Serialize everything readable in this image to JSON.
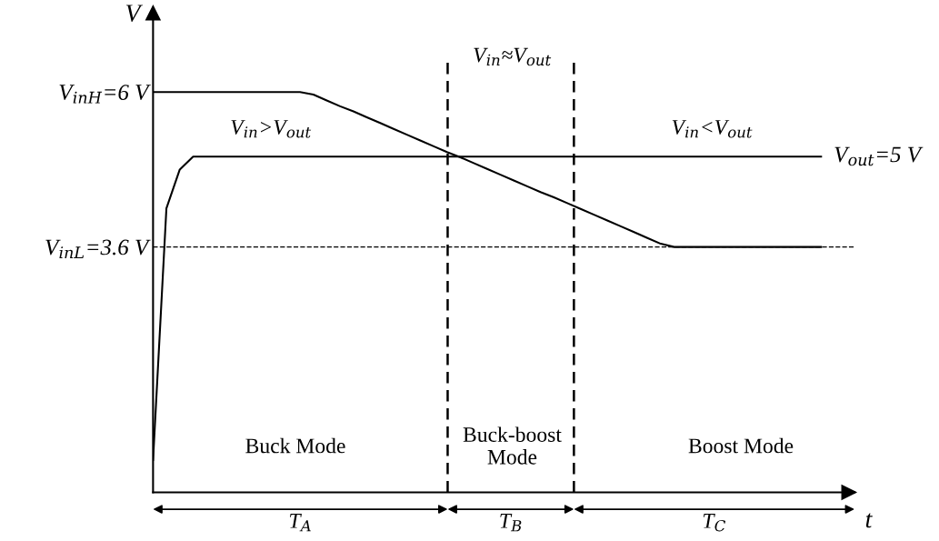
{
  "chart_data": {
    "type": "line",
    "xlabel": "t",
    "ylabel": "V",
    "categories": [
      null,
      null,
      null,
      null,
      null,
      null,
      null,
      null,
      null,
      null,
      null,
      null,
      null,
      null,
      null,
      null,
      null,
      null,
      null,
      null,
      null,
      null,
      null,
      null,
      null,
      null,
      null,
      null,
      null,
      null,
      null,
      null,
      null,
      null,
      null,
      null,
      null,
      null,
      null,
      null,
      null,
      null,
      null,
      null,
      null,
      null,
      null,
      null,
      null,
      null,
      null
    ],
    "ylim": [
      -0.2,
      7.3
    ],
    "yticks": [
      {
        "value": 6,
        "label": "V$_{inH}$=6 V"
      },
      {
        "value": 3.6,
        "label": "V$_{inL}$=3.6 V"
      }
    ],
    "grid": false,
    "legend": false,
    "marker": "none",
    "line_style": "solid",
    "series": [
      {
        "color": "#000000",
        "values": [
          6,
          6,
          6,
          6,
          6,
          6,
          6,
          6,
          6,
          6,
          6,
          6,
          5.96,
          5.87,
          5.78,
          5.7,
          5.61,
          5.52,
          5.43,
          5.34,
          5.25,
          5.16,
          5.07,
          4.99,
          4.9,
          4.81,
          4.72,
          4.63,
          4.54,
          4.45,
          4.37,
          4.28,
          4.19,
          4.1,
          4.01,
          3.92,
          3.83,
          3.74,
          3.65,
          3.6,
          3.6,
          3.6,
          3.6,
          3.6,
          3.6,
          3.6,
          3.6,
          3.6,
          3.6,
          3.6,
          3.6
        ]
      },
      {
        "name": "V$_{out}$=5 V",
        "color": "#000000",
        "values": [
          0.3,
          4.2,
          4.8,
          5,
          5,
          5,
          5,
          5,
          5,
          5,
          5,
          5,
          5,
          5,
          5,
          5,
          5,
          5,
          5,
          5,
          5,
          5,
          5,
          5,
          5,
          5,
          5,
          5,
          5,
          5,
          5,
          5,
          5,
          5,
          5,
          5,
          5,
          5,
          5,
          5,
          5,
          5,
          5,
          5,
          5,
          5,
          5,
          5,
          5,
          5,
          5
        ]
      }
    ],
    "ref_lines": [
      {
        "axis": "y",
        "value": 3.6,
        "line_style": "dashed",
        "color": "#000000"
      }
    ],
    "annotations": [
      "V$_{in}$>V$_{out}$",
      "V$_{in}$≈V$_{out}$",
      "V$_{in}$<V$_{out}$",
      "Buck Mode",
      "Buck-boost\nMode",
      "Boost Mode",
      "T$_{A}$",
      "T$_{B}$",
      "T$_{C}$"
    ]
  }
}
